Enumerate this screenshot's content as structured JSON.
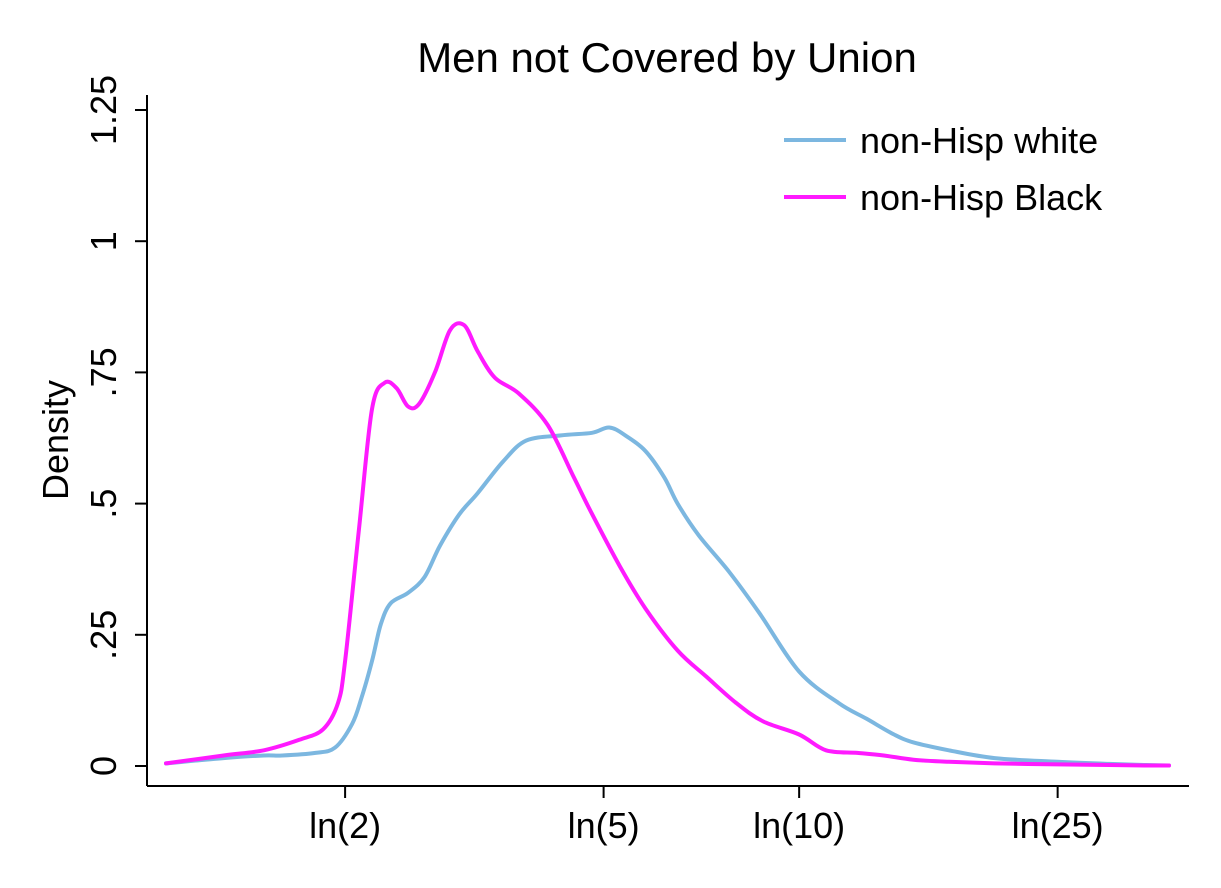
{
  "chart_data": {
    "type": "line",
    "title": "Men not Covered by Union",
    "xlabel": "",
    "ylabel": "Density",
    "x_scale": "log",
    "xlim": [
      1.06,
      37.1
    ],
    "ylim": [
      0,
      1.25
    ],
    "y_ticks": [
      {
        "value": 0,
        "label": "0"
      },
      {
        "value": 0.25,
        "label": ".25"
      },
      {
        "value": 0.5,
        "label": ".5"
      },
      {
        "value": 0.75,
        "label": ".75"
      },
      {
        "value": 1,
        "label": "1"
      },
      {
        "value": 1.25,
        "label": "1.25"
      }
    ],
    "x_ticks": [
      {
        "value": 2,
        "label": "ln(2)"
      },
      {
        "value": 5,
        "label": "ln(5)"
      },
      {
        "value": 10,
        "label": "ln(10)"
      },
      {
        "value": 25,
        "label": "ln(25)"
      }
    ],
    "grid": false,
    "legend_position": "top-right",
    "series": [
      {
        "name": "non-Hisp white",
        "color": "#7cb7e0",
        "x": [
          1.06,
          1.3,
          1.5,
          1.6,
          1.8,
          1.93,
          2.05,
          2.12,
          2.2,
          2.27,
          2.35,
          2.5,
          2.65,
          2.8,
          3.0,
          3.2,
          3.5,
          3.8,
          4.3,
          4.8,
          5.1,
          5.4,
          5.8,
          6.2,
          6.5,
          7.0,
          7.8,
          8.7,
          10.0,
          11.5,
          12.7,
          14.0,
          15.0,
          17.0,
          20.0,
          25.0,
          30.0,
          34.0,
          37.1
        ],
        "y": [
          0.005,
          0.015,
          0.02,
          0.02,
          0.025,
          0.035,
          0.08,
          0.13,
          0.2,
          0.27,
          0.31,
          0.33,
          0.36,
          0.42,
          0.48,
          0.52,
          0.58,
          0.62,
          0.63,
          0.635,
          0.645,
          0.63,
          0.6,
          0.55,
          0.5,
          0.44,
          0.37,
          0.29,
          0.18,
          0.12,
          0.09,
          0.06,
          0.045,
          0.03,
          0.015,
          0.008,
          0.004,
          0.002,
          0.001
        ]
      },
      {
        "name": "non-Hisp Black",
        "color": "#ff1aff",
        "x": [
          1.06,
          1.3,
          1.5,
          1.7,
          1.85,
          1.95,
          2.0,
          2.1,
          2.2,
          2.3,
          2.4,
          2.5,
          2.6,
          2.75,
          2.9,
          3.05,
          3.2,
          3.4,
          3.7,
          4.1,
          4.5,
          4.8,
          5.3,
          5.8,
          6.5,
          7.2,
          8.0,
          8.8,
          10.0,
          11.0,
          12.3,
          13.5,
          15.0,
          17.0,
          20.0,
          25.0,
          30.0,
          34.0,
          37.1
        ],
        "y": [
          0.005,
          0.02,
          0.03,
          0.05,
          0.07,
          0.12,
          0.2,
          0.45,
          0.68,
          0.73,
          0.72,
          0.685,
          0.69,
          0.75,
          0.83,
          0.84,
          0.79,
          0.74,
          0.71,
          0.65,
          0.55,
          0.48,
          0.38,
          0.3,
          0.22,
          0.17,
          0.12,
          0.085,
          0.06,
          0.03,
          0.025,
          0.02,
          0.012,
          0.008,
          0.005,
          0.003,
          0.002,
          0.001,
          0.001
        ]
      }
    ]
  }
}
